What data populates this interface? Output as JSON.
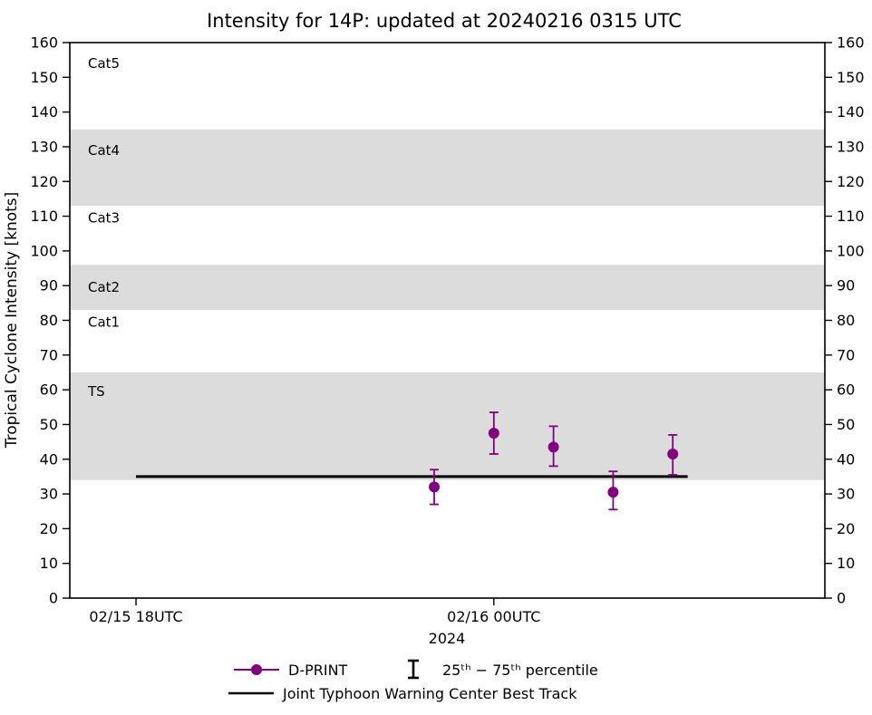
{
  "title": "Intensity for 14P: updated at 20240216 0315 UTC",
  "legend": {
    "dprint_label": "D-PRINT",
    "percentile_label": "25ᵗʰ − 75ᵗʰ percentile",
    "best_track_label": "Joint Typhoon Warning Center Best Track"
  },
  "chart_data": {
    "type": "scatter",
    "title": "Intensity for 14P: updated at 20240216 0315 UTC",
    "ylabel": "Tropical Cyclone Intensity [knots]",
    "xlabel_year": "2024",
    "ylim": [
      0,
      160
    ],
    "ytick_step": 10,
    "xlim_hours": [
      -1.11,
      11.55
    ],
    "grid": false,
    "legend_position": "bottom",
    "band_color": "#dcdcdc",
    "bands": [
      {
        "name": "ts",
        "from": 34,
        "to": 65
      },
      {
        "name": "cat2",
        "from": 83,
        "to": 96
      },
      {
        "name": "cat4",
        "from": 113,
        "to": 135
      }
    ],
    "category_labels": [
      {
        "text": "Cat5",
        "y": 154
      },
      {
        "text": "Cat4",
        "y": 129
      },
      {
        "text": "Cat3",
        "y": 109.5
      },
      {
        "text": "Cat2",
        "y": 89.5
      },
      {
        "text": "Cat1",
        "y": 79.5
      },
      {
        "text": "TS",
        "y": 59.5
      }
    ],
    "xticks": [
      {
        "hour": 0,
        "label": "02/15 18UTC"
      },
      {
        "hour": 6,
        "label": "02/16 00UTC"
      }
    ],
    "series": [
      {
        "name": "D-PRINT",
        "color": "#800080",
        "points": [
          {
            "hour": 5,
            "time": "02/15 23UTC",
            "value": 32,
            "p25": 27,
            "p75": 37
          },
          {
            "hour": 6,
            "time": "02/16 00UTC",
            "value": 47.5,
            "p25": 41.5,
            "p75": 53.5
          },
          {
            "hour": 7,
            "time": "02/16 01UTC",
            "value": 43.5,
            "p25": 38,
            "p75": 49.5
          },
          {
            "hour": 8,
            "time": "02/16 02UTC",
            "value": 30.5,
            "p25": 25.5,
            "p75": 36.5
          },
          {
            "hour": 9,
            "time": "02/16 03UTC",
            "value": 41.5,
            "p25": 35.5,
            "p75": 47
          }
        ]
      }
    ],
    "best_track": {
      "name": "Joint Typhoon Warning Center Best Track",
      "color": "#000000",
      "value": 35,
      "from_hour": 0,
      "to_hour": 9.25
    }
  }
}
